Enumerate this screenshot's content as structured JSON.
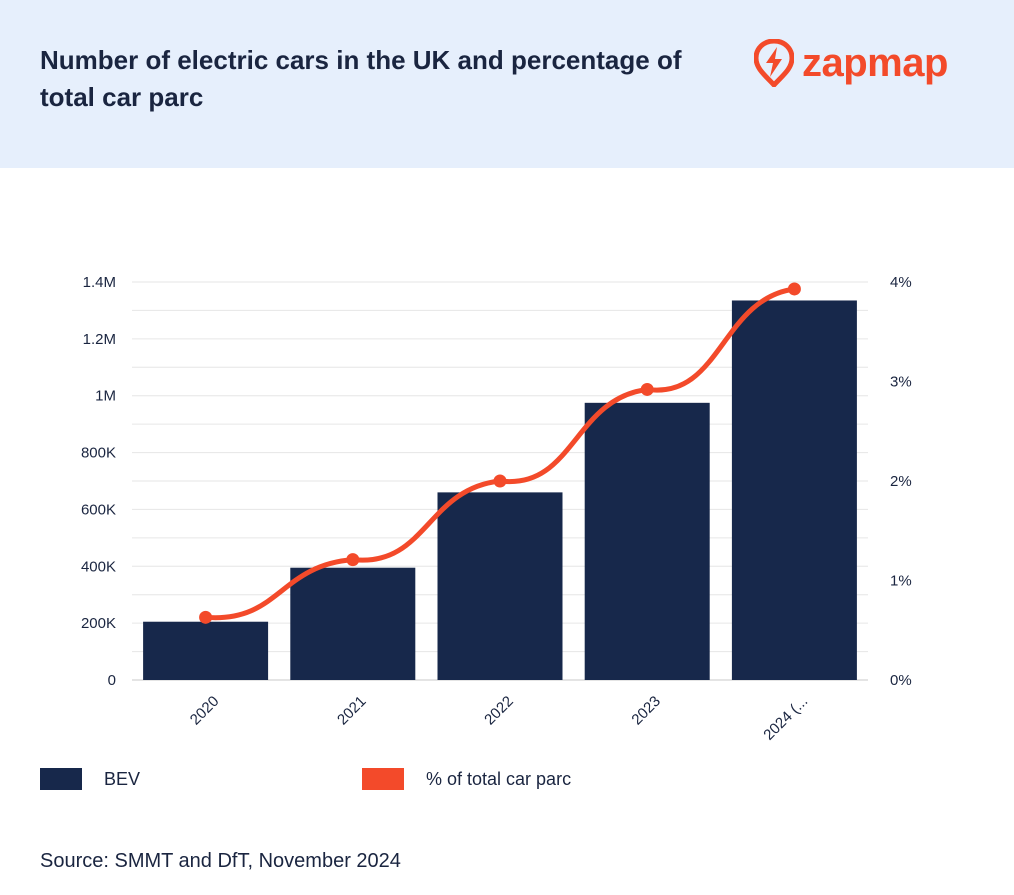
{
  "header": {
    "title": "Number of electric cars in the UK and percentage of total car parc",
    "logo_text": "zapmap",
    "logo_icon": "zapmap-bolt-icon"
  },
  "colors": {
    "header_bg": "#e6effc",
    "bar": "#17284b",
    "line": "#f34a2a",
    "text": "#1a2540",
    "grid": "#e6e6e6"
  },
  "chart_data": {
    "type": "bar",
    "categories": [
      "2020",
      "2021",
      "2022",
      "2023",
      "2024 (..."
    ],
    "series": [
      {
        "name": "BEV",
        "type": "bar",
        "axis": "left",
        "values": [
          205000,
          395000,
          660000,
          975000,
          1335000
        ]
      },
      {
        "name": "% of total car parc",
        "type": "line",
        "axis": "right",
        "values": [
          0.63,
          1.21,
          2.0,
          2.92,
          3.93
        ]
      }
    ],
    "left_axis": {
      "ylim": [
        0,
        1400000
      ],
      "ticks": [
        0,
        200000,
        400000,
        600000,
        800000,
        1000000,
        1200000,
        1400000
      ],
      "tick_labels": [
        "0",
        "200K",
        "400K",
        "600K",
        "800K",
        "1M",
        "1.2M",
        "1.4M"
      ]
    },
    "right_axis": {
      "ylim": [
        0,
        4
      ],
      "ticks": [
        0,
        1,
        2,
        3,
        4
      ],
      "tick_labels": [
        "0%",
        "1%",
        "2%",
        "3%",
        "4%"
      ]
    },
    "grid": true,
    "legend": "bottom-left"
  },
  "legend": {
    "bev_label": "BEV",
    "pct_label": "% of total car parc"
  },
  "footer": {
    "source": "Source: SMMT and DfT, November 2024"
  }
}
